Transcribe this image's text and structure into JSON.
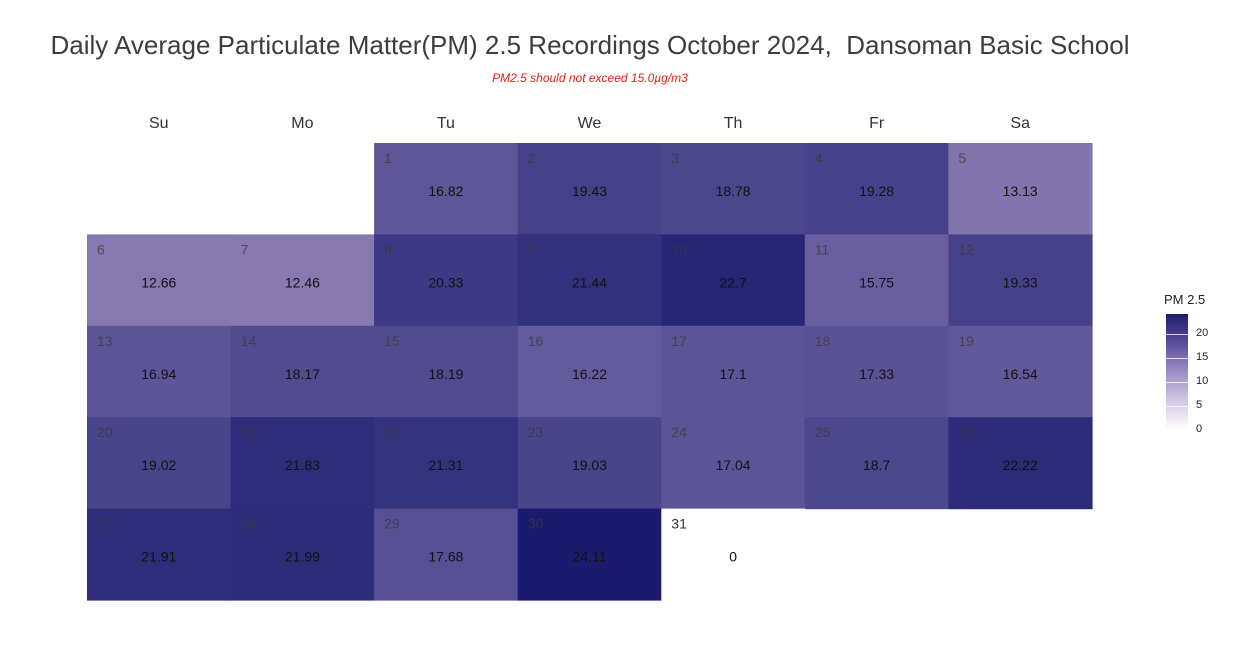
{
  "chart_data": {
    "type": "heatmap",
    "title": "Daily Average Particulate Matter(PM) 2.5 Recordings October 2024,  Dansoman Basic School",
    "subtitle": "PM2.5 should not exceed 15.0µg/m3",
    "weekdays": [
      "Su",
      "Mo",
      "Tu",
      "We",
      "Th",
      "Fr",
      "Sa"
    ],
    "first_weekday_index": 2,
    "days": [
      {
        "day": 1,
        "value": 16.82
      },
      {
        "day": 2,
        "value": 19.43
      },
      {
        "day": 3,
        "value": 18.78
      },
      {
        "day": 4,
        "value": 19.28
      },
      {
        "day": 5,
        "value": 13.13
      },
      {
        "day": 6,
        "value": 12.66
      },
      {
        "day": 7,
        "value": 12.46
      },
      {
        "day": 8,
        "value": 20.33
      },
      {
        "day": 9,
        "value": 21.44
      },
      {
        "day": 10,
        "value": 22.7
      },
      {
        "day": 11,
        "value": 15.75
      },
      {
        "day": 12,
        "value": 19.33
      },
      {
        "day": 13,
        "value": 16.94
      },
      {
        "day": 14,
        "value": 18.17
      },
      {
        "day": 15,
        "value": 18.19
      },
      {
        "day": 16,
        "value": 16.22
      },
      {
        "day": 17,
        "value": 17.1
      },
      {
        "day": 18,
        "value": 17.33
      },
      {
        "day": 19,
        "value": 16.54
      },
      {
        "day": 20,
        "value": 19.02
      },
      {
        "day": 21,
        "value": 21.83
      },
      {
        "day": 22,
        "value": 21.31
      },
      {
        "day": 23,
        "value": 19.03
      },
      {
        "day": 24,
        "value": 17.04
      },
      {
        "day": 25,
        "value": 18.7
      },
      {
        "day": 26,
        "value": 22.22
      },
      {
        "day": 27,
        "value": 21.91
      },
      {
        "day": 28,
        "value": 21.99
      },
      {
        "day": 29,
        "value": 17.68
      },
      {
        "day": 30,
        "value": 24.11
      },
      {
        "day": 31,
        "value": 0
      }
    ],
    "legend": {
      "title": "PM 2.5",
      "ticks": [
        0,
        5,
        10,
        15,
        20
      ],
      "range": [
        0,
        24.11
      ],
      "placement": "right"
    },
    "colors": {
      "low": "#ffffff",
      "high": "#1a1a6e"
    }
  }
}
